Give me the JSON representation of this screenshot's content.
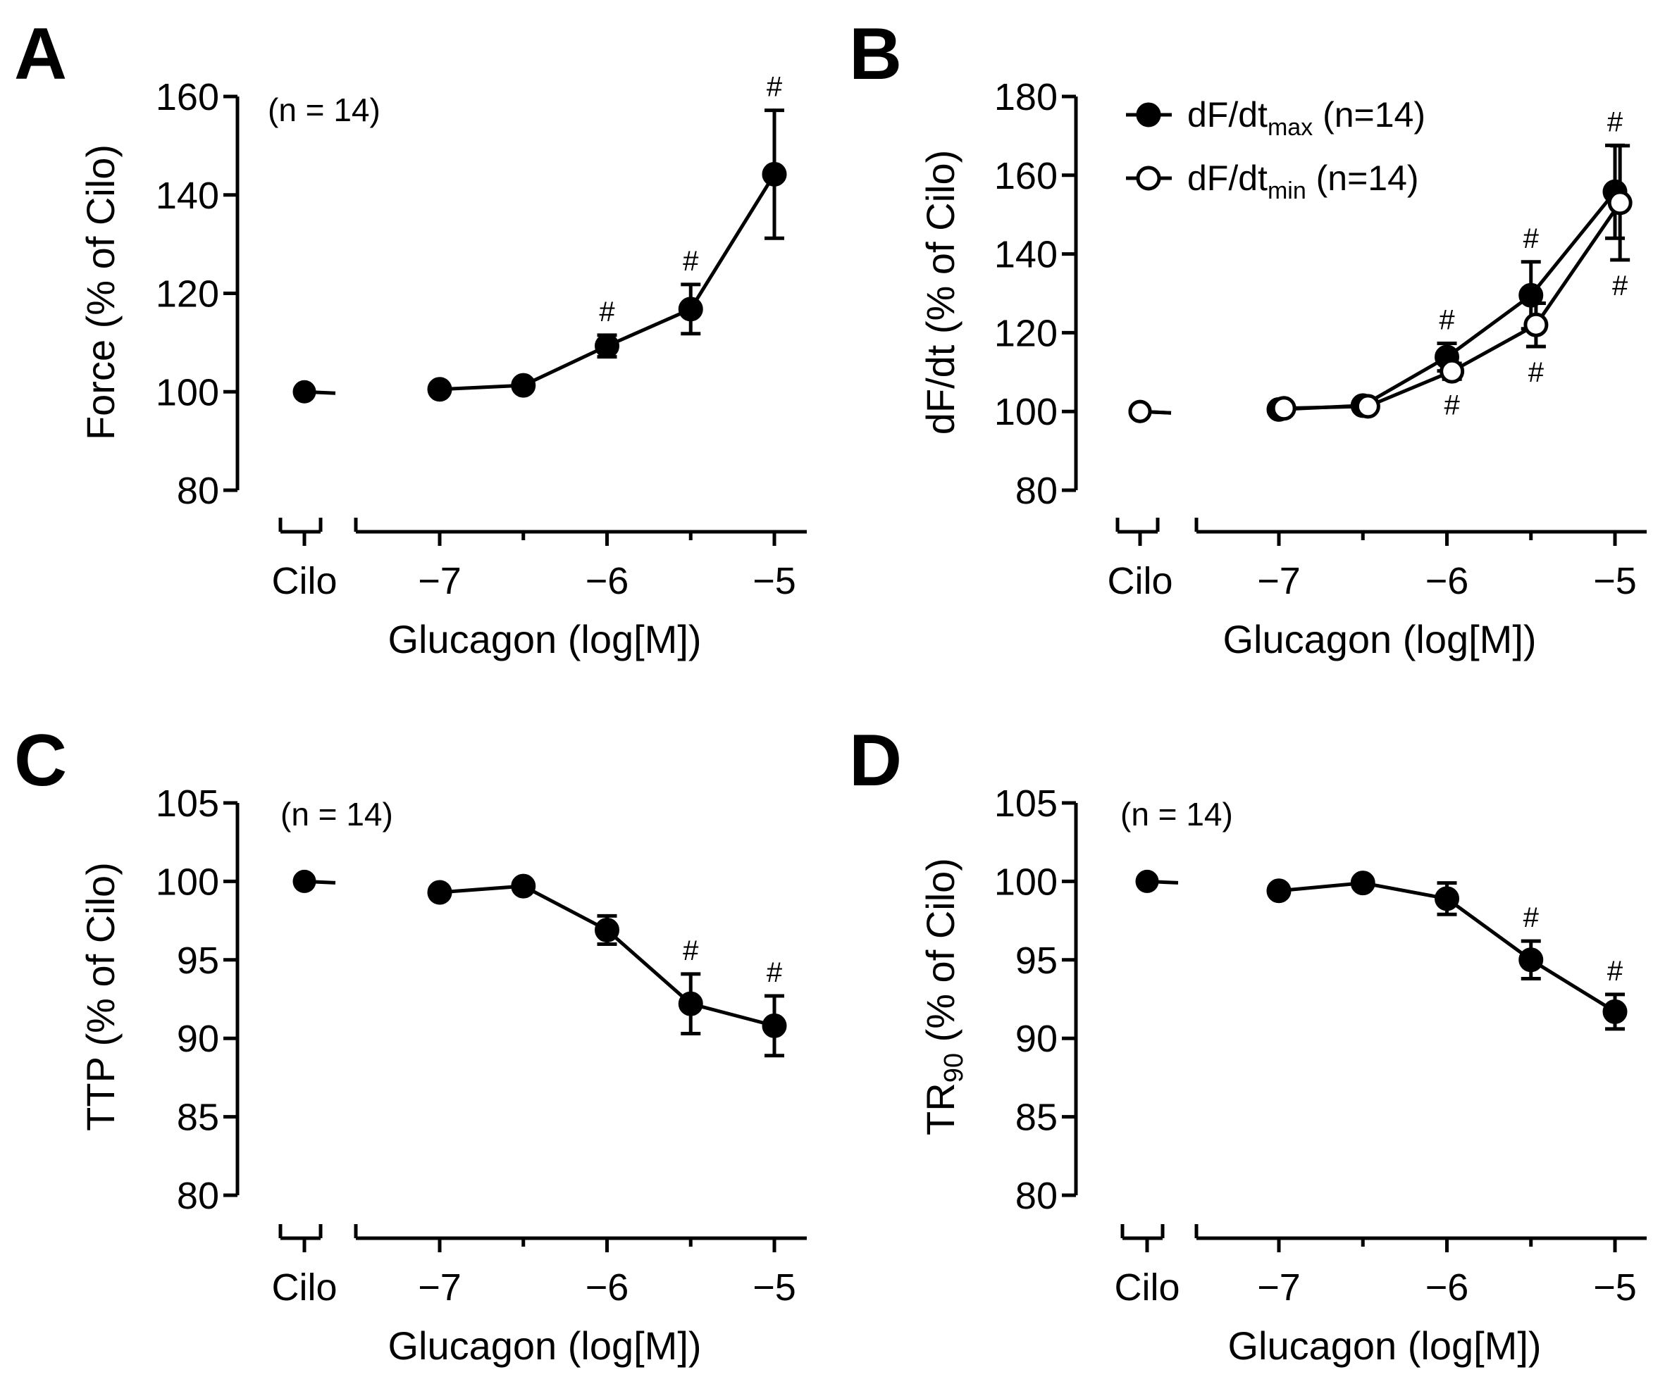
{
  "colors": {
    "ink": "#000000",
    "background": "#ffffff",
    "open_marker_fill": "#ffffff"
  },
  "chart_data": [
    {
      "panel": "A",
      "type": "line",
      "ylabel": "Force (% of Cilo)",
      "xlabel": "Glucagon (log[M])",
      "baseline_label": "Cilo",
      "annotation": "(n = 14)",
      "ylim": [
        80,
        160
      ],
      "yticks": [
        80,
        100,
        120,
        140,
        160
      ],
      "xlim": [
        -7.5,
        -4.8
      ],
      "xticks": [
        -7,
        -6,
        -5
      ],
      "xtick_labels": [
        "−7",
        "−6",
        "−5"
      ],
      "series": [
        {
          "name": "Force",
          "marker": "filled",
          "baseline": 100,
          "x": [
            -7,
            -6.5,
            -6,
            -5.5,
            -5
          ],
          "y": [
            100.5,
            101.3,
            109.3,
            116.8,
            144.2
          ],
          "err": [
            0,
            0,
            2.2,
            5,
            13
          ],
          "sig": [
            "",
            "",
            "#",
            "#",
            "#"
          ],
          "sig_pos": [
            "",
            "",
            "above",
            "above",
            "above"
          ]
        }
      ]
    },
    {
      "panel": "B",
      "type": "line",
      "ylabel": "dF/dt (% of Cilo)",
      "xlabel": "Glucagon (log[M])",
      "baseline_label": "Cilo",
      "annotation": "",
      "ylim": [
        80,
        180
      ],
      "yticks": [
        80,
        100,
        120,
        140,
        160,
        180
      ],
      "xlim": [
        -7.5,
        -4.8
      ],
      "xticks": [
        -7,
        -6,
        -5
      ],
      "xtick_labels": [
        "−7",
        "−6",
        "−5"
      ],
      "legend": [
        {
          "main": "dF/dt",
          "sub": "max",
          "suffix": " (n=14)",
          "marker": "filled"
        },
        {
          "main": "dF/dt",
          "sub": "min",
          "suffix": " (n=14)",
          "marker": "open"
        }
      ],
      "series": [
        {
          "name": "dF/dt max",
          "marker": "filled",
          "baseline": 100,
          "x": [
            -7,
            -6.5,
            -6,
            -5.5,
            -5
          ],
          "y": [
            100.5,
            101.5,
            113.8,
            129.5,
            155.8
          ],
          "err": [
            0,
            0,
            3.5,
            8.5,
            11.8
          ],
          "sig": [
            "",
            "",
            "#",
            "#",
            "#"
          ],
          "sig_pos": [
            "",
            "",
            "above",
            "above",
            "above"
          ]
        },
        {
          "name": "dF/dt min",
          "marker": "open",
          "baseline": 100,
          "x": [
            -6.97,
            -6.47,
            -5.97,
            -5.47,
            -4.97
          ],
          "y": [
            100.8,
            101.3,
            110.2,
            122.0,
            153.0
          ],
          "err": [
            0,
            0,
            2,
            5.5,
            14.5
          ],
          "sig": [
            "",
            "",
            "#",
            "#",
            "#"
          ],
          "sig_pos": [
            "",
            "",
            "below",
            "below",
            "below"
          ]
        }
      ]
    },
    {
      "panel": "C",
      "type": "line",
      "ylabel": "TTP (% of Cilo)",
      "xlabel": "Glucagon (log[M])",
      "baseline_label": "Cilo",
      "annotation": "(n = 14)",
      "ylim": [
        80,
        105
      ],
      "yticks": [
        80,
        85,
        90,
        95,
        100,
        105
      ],
      "xlim": [
        -7.5,
        -4.8
      ],
      "xticks": [
        -7,
        -6,
        -5
      ],
      "xtick_labels": [
        "−7",
        "−6",
        "−5"
      ],
      "series": [
        {
          "name": "TTP",
          "marker": "filled",
          "baseline": 100,
          "x": [
            -7,
            -6.5,
            -6,
            -5.5,
            -5
          ],
          "y": [
            99.3,
            99.7,
            96.9,
            92.2,
            90.8
          ],
          "err": [
            0,
            0,
            0.9,
            1.9,
            1.9
          ],
          "sig": [
            "",
            "",
            "",
            "#",
            "#"
          ],
          "sig_pos": [
            "",
            "",
            "",
            "above",
            "above"
          ]
        }
      ]
    },
    {
      "panel": "D",
      "type": "line",
      "ylabel_main": "TR",
      "ylabel_sub": "90",
      "ylabel_rest": " (% of Cilo)",
      "xlabel": "Glucagon (log[M])",
      "baseline_label": "Cilo",
      "annotation": "(n = 14)",
      "ylim": [
        80,
        105
      ],
      "yticks": [
        80,
        85,
        90,
        95,
        100,
        105
      ],
      "xlim": [
        -7.5,
        -4.8
      ],
      "xticks": [
        -7,
        -6,
        -5
      ],
      "xtick_labels": [
        "−7",
        "−6",
        "−5"
      ],
      "series": [
        {
          "name": "TR90",
          "marker": "filled",
          "baseline": 100,
          "x": [
            -7,
            -6.5,
            -6,
            -5.5,
            -5
          ],
          "y": [
            99.4,
            99.9,
            98.9,
            95.0,
            91.7
          ],
          "err": [
            0,
            0,
            1.0,
            1.2,
            1.1
          ],
          "sig": [
            "",
            "",
            "",
            "#",
            "#"
          ],
          "sig_pos": [
            "",
            "",
            "",
            "above",
            "above"
          ]
        }
      ]
    }
  ]
}
